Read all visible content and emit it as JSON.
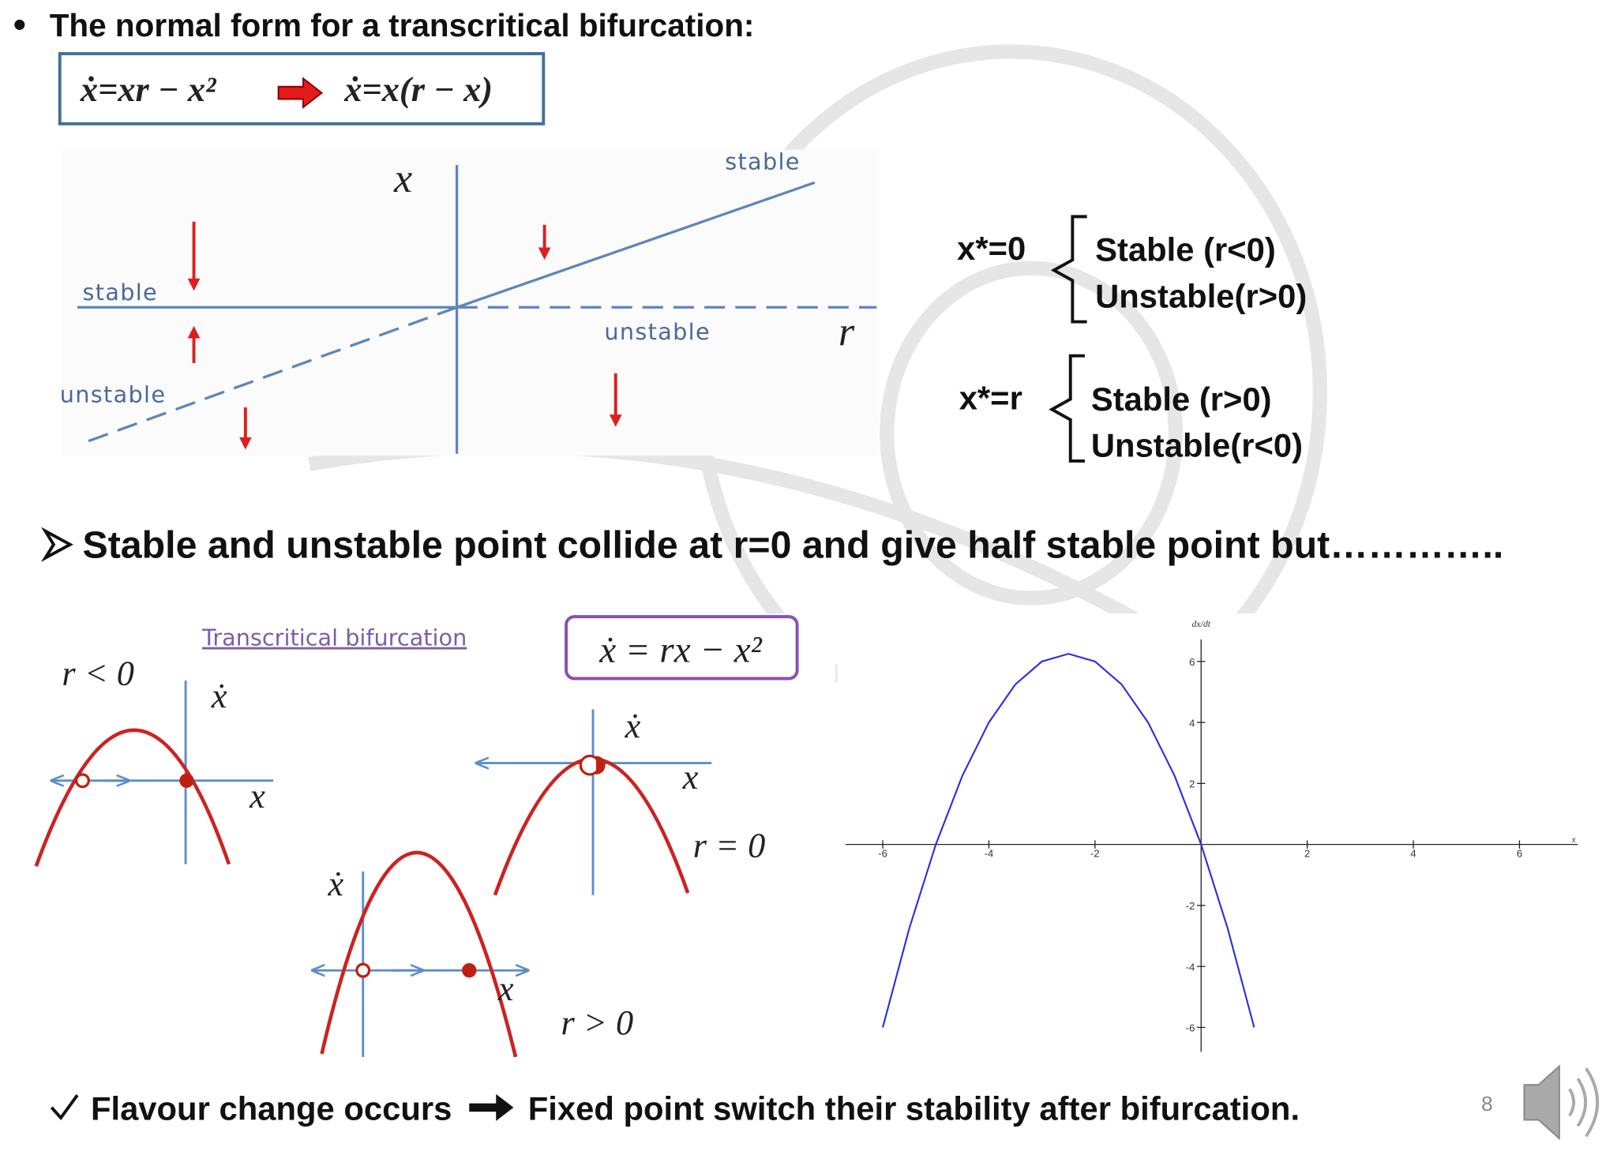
{
  "bullet": "The normal form for a transcritical bifurcation:",
  "equation_box": {
    "left": "ẋ=xr − x²",
    "right": "ẋ=x(r − x)"
  },
  "diagram": {
    "x_axis": "x",
    "r_axis": "r",
    "stable_upper": "stable",
    "stable_left": "stable",
    "unstable_right": "unstable",
    "unstable_left": "unstable"
  },
  "fixed_points": [
    {
      "point": "x*=0",
      "first": "Stable (r<0)",
      "second": "Unstable(r>0)"
    },
    {
      "point": "x*=r",
      "first": "Stable (r>0)",
      "second": "Unstable(r<0)"
    }
  ],
  "statement": "Stable and unstable point collide at r=0 and give half stable point but…………..",
  "phase_portraits": {
    "title": "Transcritical bifurcation",
    "equation": "ẋ = rx − x²",
    "panels": [
      {
        "condition": "r < 0",
        "y_axis": "ẋ",
        "x_axis": "x"
      },
      {
        "condition": "r = 0",
        "y_axis": "ẋ",
        "x_axis": "x"
      },
      {
        "condition": "r > 0",
        "y_axis": "ẋ",
        "x_axis": "x"
      }
    ]
  },
  "chart_data": {
    "type": "line",
    "x_label": "x",
    "y_label": "dx/dt",
    "x": [
      -6,
      -5.5,
      -5,
      -4.5,
      -4,
      -3.5,
      -3,
      -2.5,
      -2,
      -1.5,
      -1,
      -0.5,
      0,
      0.5,
      1
    ],
    "values": [
      -6,
      -2.75,
      0,
      2.25,
      4,
      5.25,
      6,
      6.25,
      6,
      5.25,
      4,
      2.25,
      0,
      -2.75,
      -6
    ],
    "color": "#2a2ae6",
    "xlim": [
      -6.7,
      7.1
    ],
    "ylim": [
      -6.8,
      7.4
    ],
    "xticks": [
      -6,
      -4,
      -2,
      2,
      4,
      6
    ],
    "yticks": [
      -6,
      -4,
      -2,
      2,
      4,
      6
    ]
  },
  "conclusion": {
    "left": "Flavour change occurs",
    "right": "Fixed point switch their stability after bifurcation."
  },
  "page_number": "8"
}
